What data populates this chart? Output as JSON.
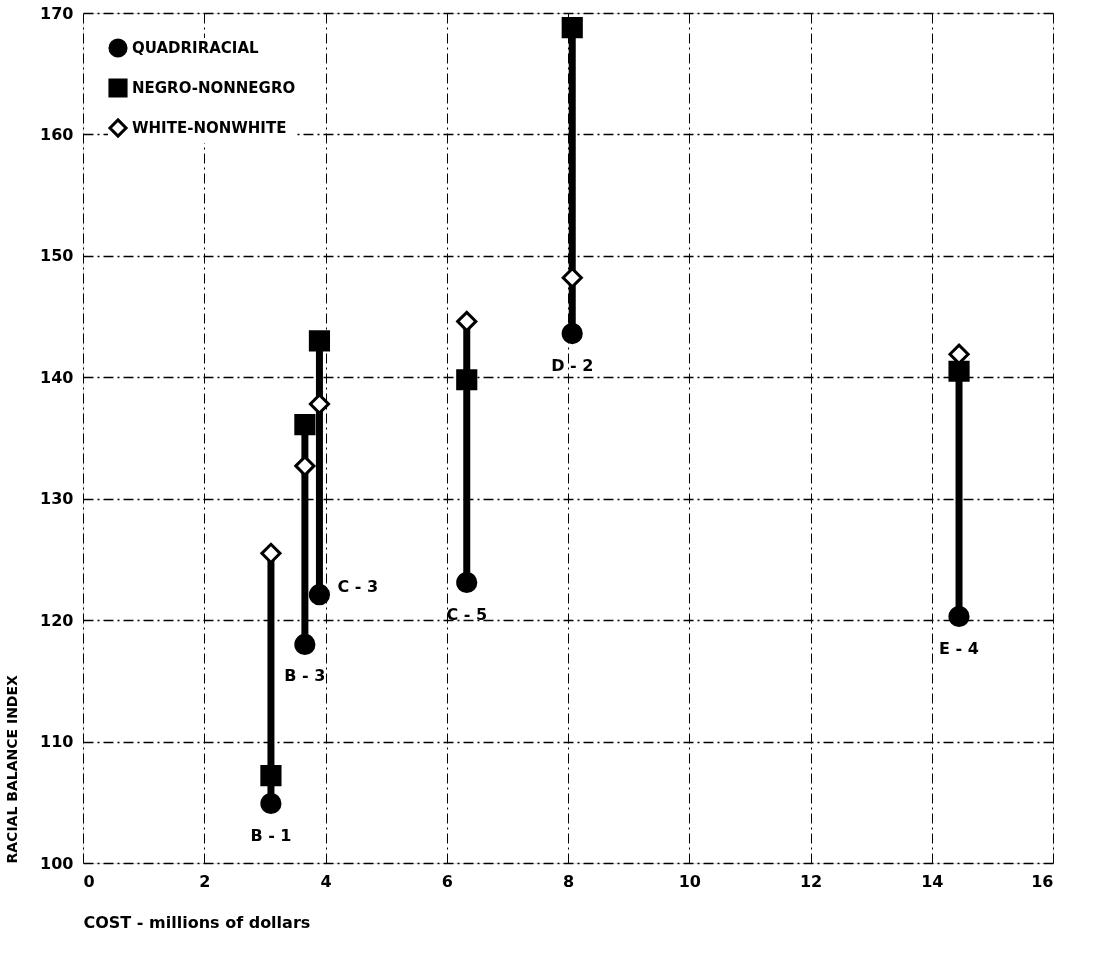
{
  "chart_data": {
    "type": "scatter",
    "xlabel": "COST  -  millions of dollars",
    "ylabel": "RACIAL BALANCE INDEX",
    "x": [
      3.1,
      3.66,
      3.9,
      6.33,
      8.07,
      14.45
    ],
    "series": [
      {
        "name": "QUADRIRACIAL",
        "color": "#000000",
        "marker": "circle",
        "values": [
          104.9,
          118.0,
          122.1,
          123.1,
          143.6,
          120.3
        ]
      },
      {
        "name": "NEGRO-NONNEGRO",
        "color": "#000000",
        "marker": "square",
        "values": [
          107.2,
          136.1,
          143.0,
          139.8,
          168.8,
          140.5
        ]
      },
      {
        "name": "WHITE-NONWHITE",
        "color": "#000000",
        "marker": "diamond",
        "values": [
          125.5,
          132.7,
          137.8,
          144.6,
          148.2,
          141.9
        ]
      },
      {
        "type": "line",
        "color": "#000000",
        "x": [
          3.1,
          3.1
        ],
        "values": [
          104.9,
          125.5
        ]
      },
      {
        "type": "line",
        "color": "#000000",
        "x": [
          3.66,
          3.66
        ],
        "values": [
          118.0,
          136.1
        ]
      },
      {
        "type": "line",
        "color": "#000000",
        "x": [
          3.9,
          3.9
        ],
        "values": [
          122.1,
          143.0
        ]
      },
      {
        "type": "line",
        "color": "#000000",
        "x": [
          6.33,
          6.33
        ],
        "values": [
          123.1,
          144.6
        ]
      },
      {
        "type": "line",
        "color": "#000000",
        "x": [
          8.07,
          8.07
        ],
        "values": [
          143.6,
          168.8
        ]
      },
      {
        "type": "line",
        "color": "#000000",
        "x": [
          14.45,
          14.45
        ],
        "values": [
          120.3,
          141.9
        ]
      }
    ],
    "annotations": [
      {
        "text": "B - 1",
        "x": 3.1,
        "y": 104.9
      },
      {
        "text": "B - 3",
        "x": 3.66,
        "y": 118.0
      },
      {
        "text": "C - 3",
        "x": 3.9,
        "y": 122.1
      },
      {
        "text": "C - 5",
        "x": 6.33,
        "y": 123.1
      },
      {
        "text": "D - 2",
        "x": 8.07,
        "y": 143.6
      },
      {
        "text": "E - 4",
        "x": 14.45,
        "y": 120.3
      }
    ],
    "xlim": [
      0,
      16
    ],
    "xticks": [
      0,
      2,
      4,
      6,
      8,
      10,
      12,
      14,
      16
    ],
    "ylim": [
      100,
      170
    ],
    "yticks": [
      100,
      110,
      120,
      130,
      140,
      150,
      160,
      170
    ],
    "grid": true,
    "legend": "top left"
  }
}
